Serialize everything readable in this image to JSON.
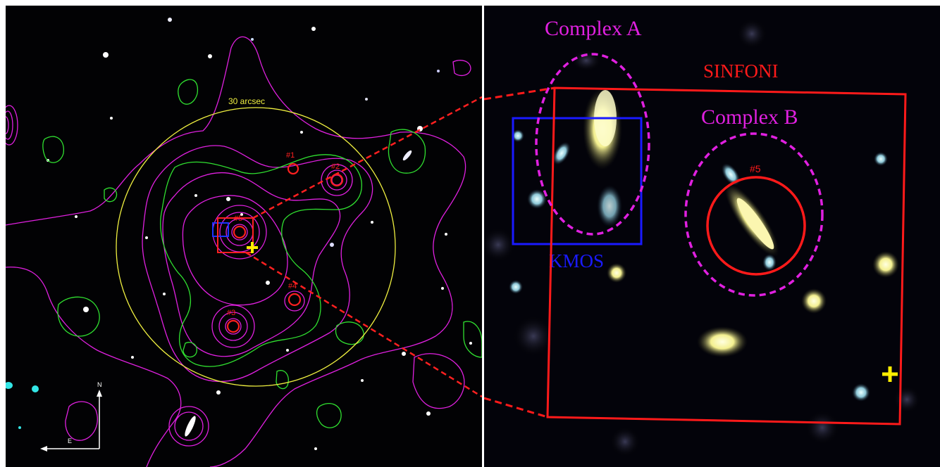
{
  "left_panel": {
    "scale_label": "30 arcsec",
    "compass": {
      "north": "N",
      "east": "E"
    },
    "source_labels": [
      "#1",
      "#2",
      "#3",
      "#4",
      "#5"
    ],
    "colors": {
      "contour_magenta": "#e020e0",
      "contour_green": "#30e030",
      "scale_circle": "#f0f040",
      "source_marker": "#ff2020",
      "kmos_box": "#1a33ff",
      "centroid_cross": "#ffee00"
    }
  },
  "right_panel": {
    "labels": {
      "complex_a": "Complex A",
      "complex_b": "Complex B",
      "sinfoni": "SINFONI",
      "kmos": "KMOS",
      "source_5": "#5"
    },
    "colors": {
      "complex_ellipse": "#e020e0",
      "sinfoni_box": "#ff1a1a",
      "kmos_box": "#1a1aff",
      "cross": "#ffee00"
    }
  }
}
